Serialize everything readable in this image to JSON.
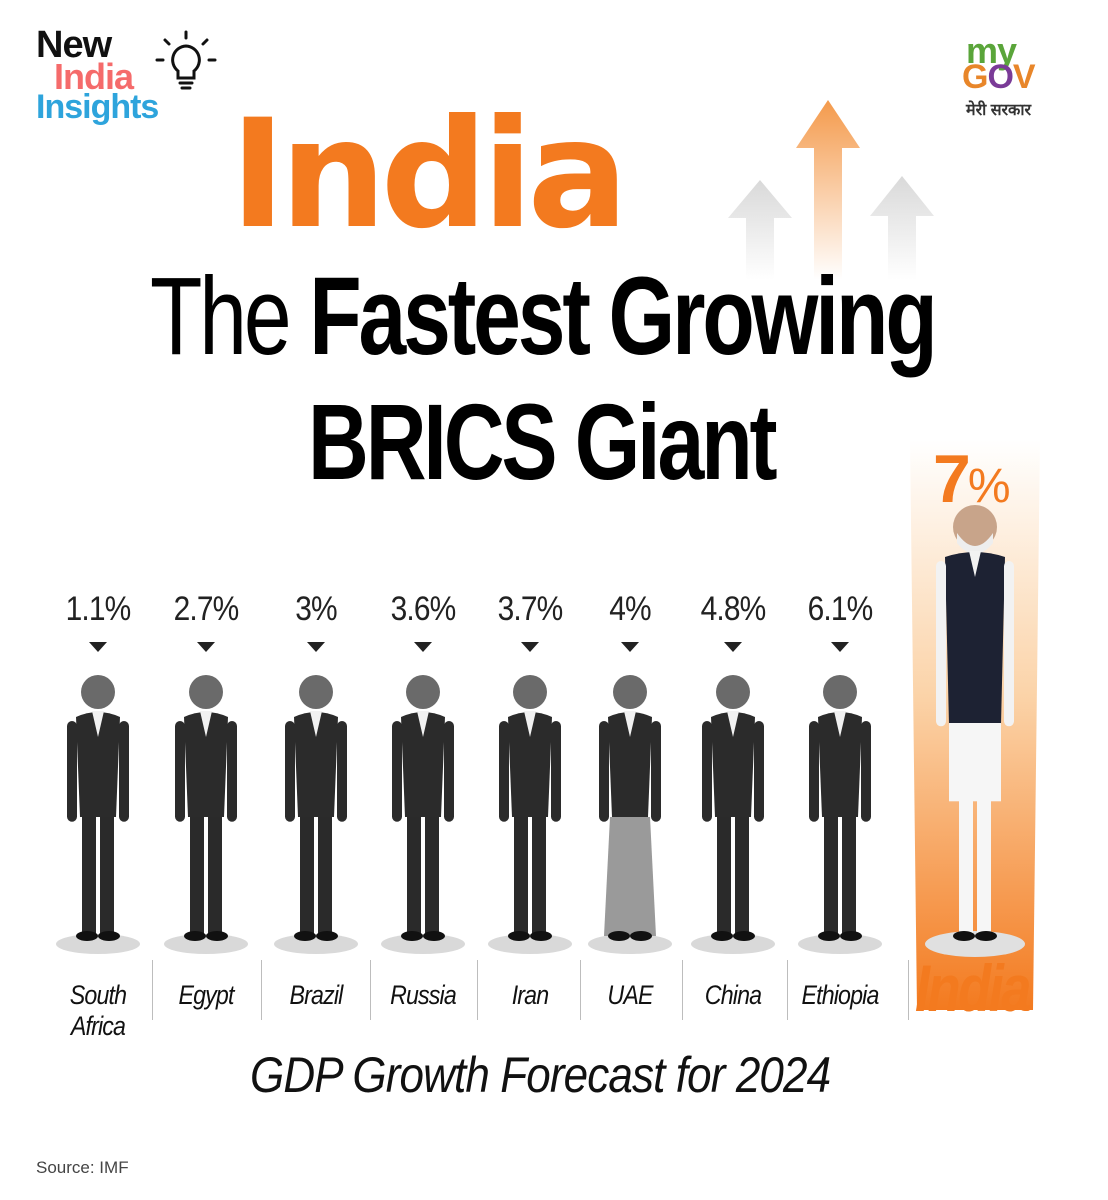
{
  "brand": {
    "line1": "New",
    "line2": "India",
    "line3": "Insights"
  },
  "logo": {
    "my": "my",
    "gov_g": "G",
    "gov_o": "O",
    "gov_v": "V",
    "hindi": "मेरी सरकार"
  },
  "headline": {
    "india": "India",
    "the": "The",
    "fastest_growing": "Fastest Growing",
    "brics_giant": "BRICS Giant"
  },
  "colors": {
    "accent": "#f37a1f",
    "text": "#111111",
    "figure": "#2b2b2b",
    "shadow": "#d9d9d9"
  },
  "chart_data": {
    "type": "bar",
    "title": "GDP Growth Forecast for 2024",
    "categories": [
      "South Africa",
      "Egypt",
      "Brazil",
      "Russia",
      "Iran",
      "UAE",
      "China",
      "Ethiopia",
      "India"
    ],
    "values": [
      1.1,
      2.7,
      3,
      3.6,
      3.7,
      4,
      4.8,
      6.1,
      7
    ],
    "value_labels": [
      "1.1%",
      "2.7%",
      "3%",
      "3.6%",
      "3.7%",
      "4%",
      "4.8%",
      "6.1%",
      "7%"
    ],
    "highlight": "India",
    "unit": "%"
  },
  "caption": "GDP Growth Forecast for 2024",
  "source": "Source: IMF"
}
